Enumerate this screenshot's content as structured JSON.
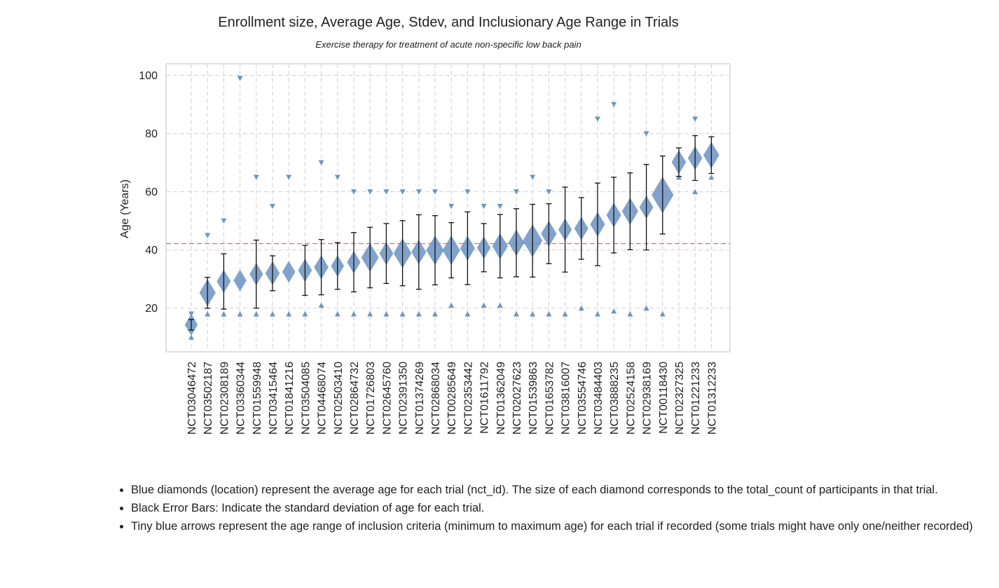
{
  "chart_data": {
    "type": "scatter",
    "title": "Enrollment size, Average Age, Stdev, and Inclusionary Age Range in Trials",
    "subtitle": "Exercise therapy for treatment of acute non-specific low back pain",
    "xlabel": "",
    "ylabel": "Age (Years)",
    "ylim": [
      5,
      104
    ],
    "yticks": [
      20,
      40,
      60,
      80,
      100
    ],
    "grid": true,
    "reference_line": 42.2,
    "colors": {
      "marker": "#6f95c3",
      "errorbar": "#111111",
      "reference": "#e8707e",
      "grid": "#cfcfcf",
      "frame": "#cccccc"
    },
    "trials": [
      {
        "nct_id": "NCT03046472",
        "mean": 14.3,
        "sd": 1.8,
        "min": 10,
        "max": 18,
        "count": 40
      },
      {
        "nct_id": "NCT03502187",
        "mean": 25.3,
        "sd": 5.3,
        "min": 18,
        "max": 45,
        "count": 80
      },
      {
        "nct_id": "NCT02308189",
        "mean": 29.2,
        "sd": 9.5,
        "min": 18,
        "max": 50,
        "count": 50
      },
      {
        "nct_id": "NCT03360344",
        "mean": 29.5,
        "sd": null,
        "min": 18,
        "max": 99,
        "count": 40
      },
      {
        "nct_id": "NCT01559948",
        "mean": 31.7,
        "sd": 11.7,
        "min": 18,
        "max": 65,
        "count": 45
      },
      {
        "nct_id": "NCT03415464",
        "mean": 32.0,
        "sd": 6.0,
        "min": 18,
        "max": 55,
        "count": 55
      },
      {
        "nct_id": "NCT01841216",
        "mean": 32.5,
        "sd": null,
        "min": 18,
        "max": 65,
        "count": 40
      },
      {
        "nct_id": "NCT03504085",
        "mean": 33.0,
        "sd": 8.6,
        "min": 18,
        "max": null,
        "count": 50
      },
      {
        "nct_id": "NCT04468074",
        "mean": 34.1,
        "sd": 9.5,
        "min": 21,
        "max": 70,
        "count": 55
      },
      {
        "nct_id": "NCT02503410",
        "mean": 34.5,
        "sd": 8.0,
        "min": 18,
        "max": 65,
        "count": 40
      },
      {
        "nct_id": "NCT02864732",
        "mean": 35.8,
        "sd": 10.2,
        "min": 18,
        "max": 60,
        "count": 45
      },
      {
        "nct_id": "NCT01726803",
        "mean": 37.4,
        "sd": 10.4,
        "min": 18,
        "max": 60,
        "count": 95
      },
      {
        "nct_id": "NCT02645760",
        "mean": 38.8,
        "sd": 10.3,
        "min": 18,
        "max": 60,
        "count": 50
      },
      {
        "nct_id": "NCT02391350",
        "mean": 38.9,
        "sd": 11.2,
        "min": 18,
        "max": 60,
        "count": 105
      },
      {
        "nct_id": "NCT01374269",
        "mean": 39.3,
        "sd": 12.8,
        "min": 18,
        "max": 60,
        "count": 60
      },
      {
        "nct_id": "NCT02868034",
        "mean": 39.9,
        "sd": 11.9,
        "min": 18,
        "max": 60,
        "count": 100
      },
      {
        "nct_id": "NCT00285649",
        "mean": 39.9,
        "sd": 9.5,
        "min": 21,
        "max": 55,
        "count": 100
      },
      {
        "nct_id": "NCT02353442",
        "mean": 40.6,
        "sd": 12.5,
        "min": 18,
        "max": 60,
        "count": 60
      },
      {
        "nct_id": "NCT01611792",
        "mean": 40.8,
        "sd": 8.3,
        "min": 21,
        "max": 55,
        "count": 45
      },
      {
        "nct_id": "NCT01362049",
        "mean": 41.3,
        "sd": 10.9,
        "min": 21,
        "max": 55,
        "count": 70
      },
      {
        "nct_id": "NCT02027623",
        "mean": 42.5,
        "sd": 11.7,
        "min": 18,
        "max": 60,
        "count": 75
      },
      {
        "nct_id": "NCT01539863",
        "mean": 43.2,
        "sd": 12.5,
        "min": 18,
        "max": 65,
        "count": 135
      },
      {
        "nct_id": "NCT01653782",
        "mean": 45.6,
        "sd": 10.3,
        "min": 18,
        "max": 60,
        "count": 70
      },
      {
        "nct_id": "NCT03816007",
        "mean": 47.0,
        "sd": 14.6,
        "min": 18,
        "max": null,
        "count": 45
      },
      {
        "nct_id": "NCT03554746",
        "mean": 47.4,
        "sd": 10.6,
        "min": 20,
        "max": null,
        "count": 50
      },
      {
        "nct_id": "NCT03484403",
        "mean": 48.8,
        "sd": 14.2,
        "min": 18,
        "max": 85,
        "count": 60
      },
      {
        "nct_id": "NCT03888235",
        "mean": 52.0,
        "sd": 13.0,
        "min": 19,
        "max": 90,
        "count": 60
      },
      {
        "nct_id": "NCT02524158",
        "mean": 53.3,
        "sd": 13.2,
        "min": 18,
        "max": null,
        "count": 80
      },
      {
        "nct_id": "NCT02938169",
        "mean": 54.7,
        "sd": 14.7,
        "min": 20,
        "max": 80,
        "count": 50
      },
      {
        "nct_id": "NCT00118430",
        "mean": 58.9,
        "sd": 13.4,
        "min": 18,
        "max": null,
        "count": 180
      },
      {
        "nct_id": "NCT02327325",
        "mean": 70.2,
        "sd": 4.9,
        "min": 65,
        "max": null,
        "count": 55
      },
      {
        "nct_id": "NCT01221233",
        "mean": 71.6,
        "sd": 7.7,
        "min": 60,
        "max": 85,
        "count": 55
      },
      {
        "nct_id": "NCT01312233",
        "mean": 72.6,
        "sd": 6.3,
        "min": 65,
        "max": null,
        "count": 75
      }
    ]
  },
  "notes": [
    "Blue diamonds (location) represent the average age for each trial (nct_id). The size of each diamond corresponds to the total_count of participants in that trial.",
    "Black Error Bars: Indicate the standard deviation of age for each trial.",
    "Tiny blue arrows represent the age range of inclusion criteria (minimum to maximum age) for each trial if recorded (some trials might have only one/neither recorded)"
  ]
}
